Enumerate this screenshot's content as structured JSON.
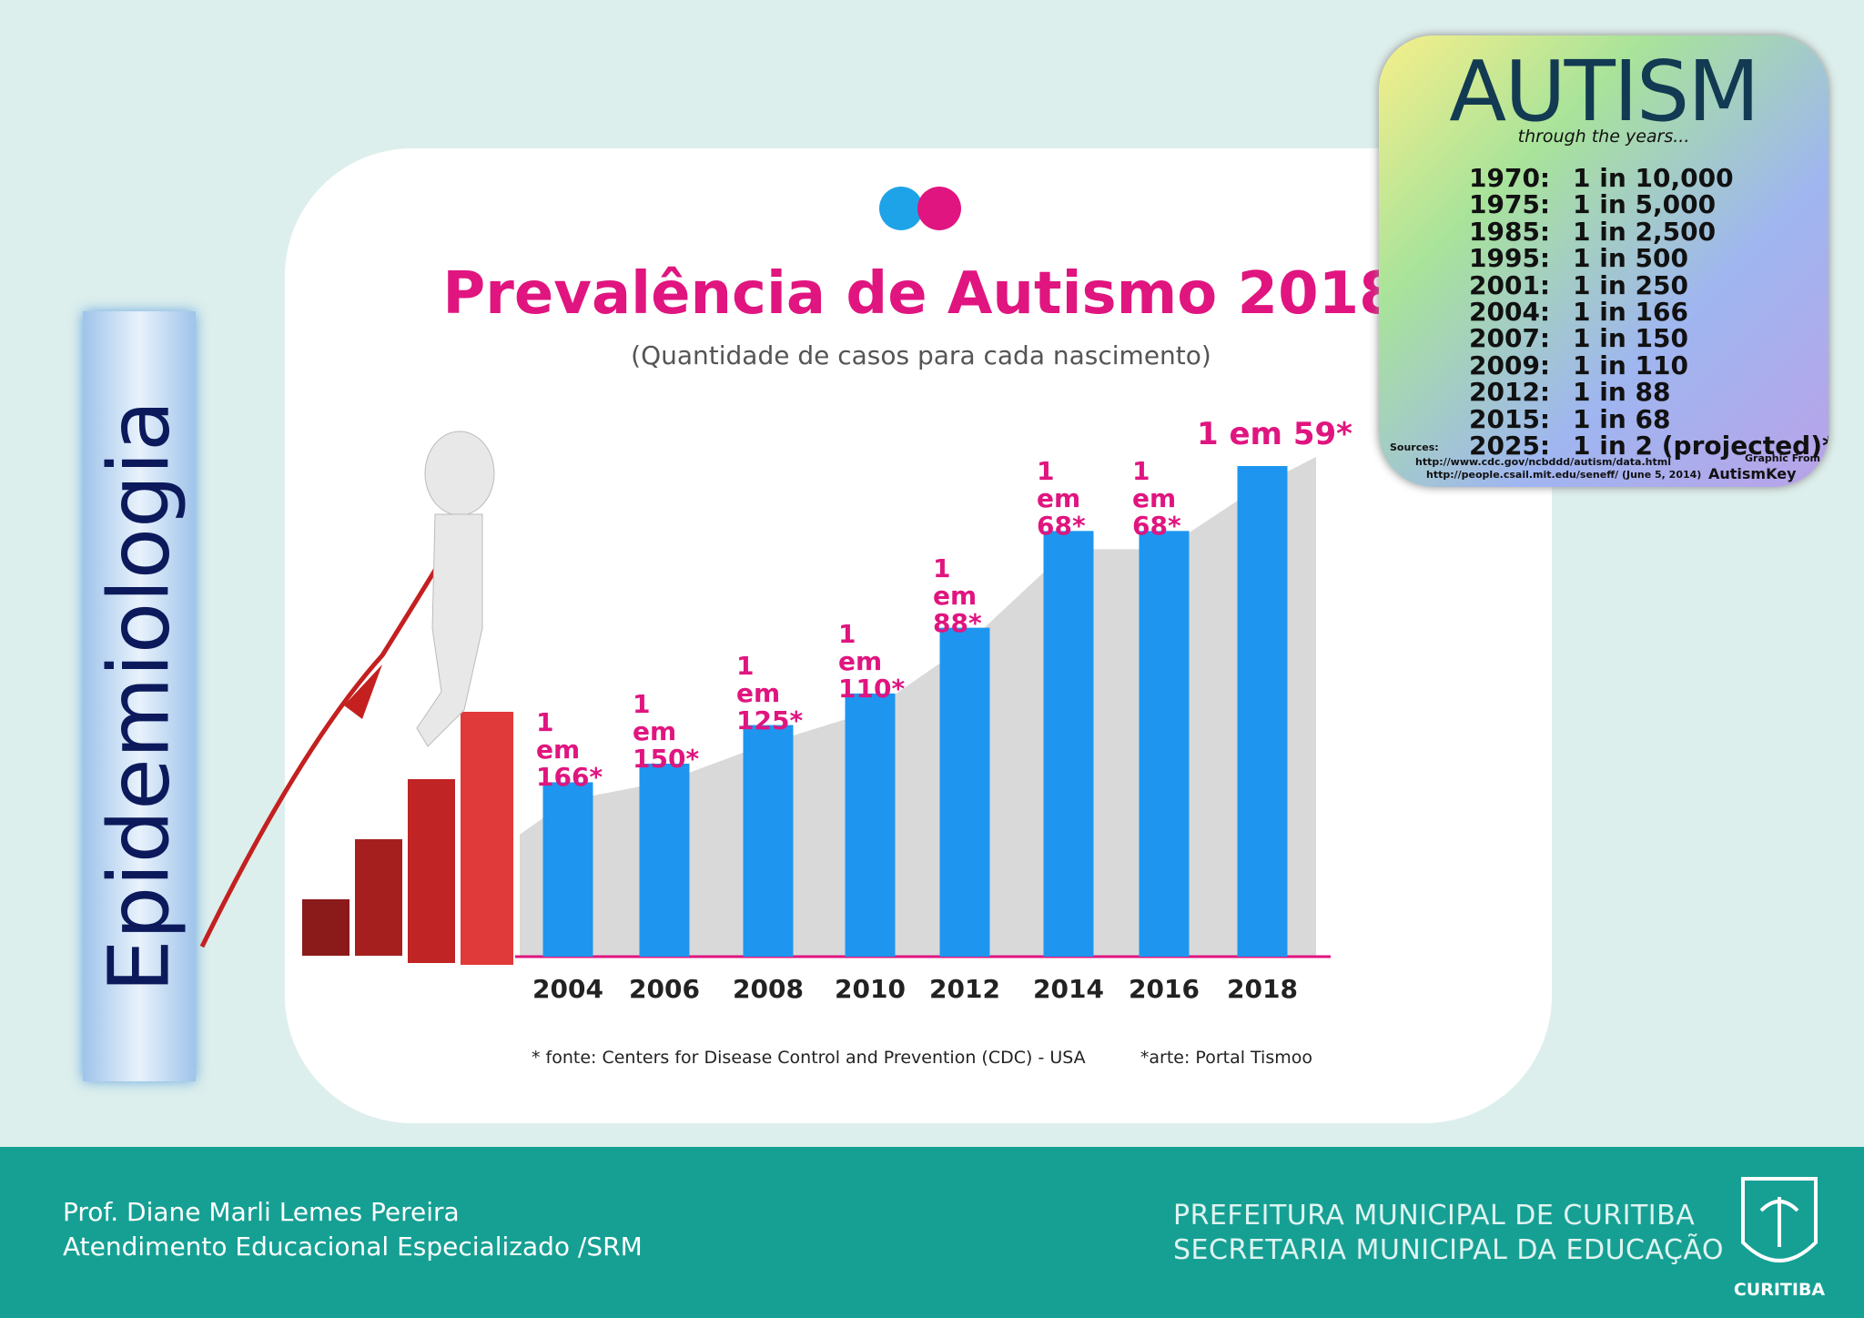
{
  "side_label": "Epidemiologia",
  "chart_data": {
    "type": "bar",
    "title": "Prevalência de Autismo 2018",
    "subtitle": "(Quantidade de casos para cada nascimento)",
    "categories": [
      "2004",
      "2006",
      "2008",
      "2010",
      "2012",
      "2014",
      "2016",
      "2018"
    ],
    "values": [
      166,
      150,
      125,
      110,
      88,
      68,
      68,
      59
    ],
    "value_labels": [
      "1 em 166*",
      "1 em 150*",
      "1 em 125*",
      "1 em 110*",
      "1 em 88*",
      "1 em 68*",
      "1 em 68*",
      "1 em 59*"
    ],
    "color": "#1e96f0",
    "notes": [
      "* fonte: Centers for Disease Control and Prevention (CDC) - USA",
      "*arte: Portal Tismoo"
    ]
  },
  "autism_box": {
    "title": "AUTISM",
    "subtitle": "through the years...",
    "rows": [
      [
        "1970:",
        "1 in 10,000"
      ],
      [
        "1975:",
        "1 in 5,000"
      ],
      [
        "1985:",
        "1 in 2,500"
      ],
      [
        "1995:",
        "1 in 500"
      ],
      [
        "2001:",
        "1 in 250"
      ],
      [
        "2004:",
        "1 in 166"
      ],
      [
        "2007:",
        "1 in 150"
      ],
      [
        "2009:",
        "1 in 110"
      ],
      [
        "2012:",
        "1 in 88"
      ],
      [
        "2015:",
        "1 in 68"
      ],
      [
        "2025:",
        "1 in 2 (projected)*"
      ]
    ],
    "sources": [
      "Sources:",
      "http://www.cdc.gov/ncbddd/autism/data.html",
      "http://people.csail.mit.edu/seneff/ (June 5, 2014)"
    ],
    "credit": [
      "Graphic From",
      "AutismKey"
    ]
  },
  "footer": {
    "author": [
      "Prof. Diane Marli Lemes Pereira",
      "Atendimento Educacional Especializado /SRM"
    ],
    "institution": [
      "PREFEITURA MUNICIPAL DE CURITIBA",
      "SECRETARIA MUNICIPAL DA EDUCAÇÃO"
    ],
    "logo": "CURITIBA"
  }
}
